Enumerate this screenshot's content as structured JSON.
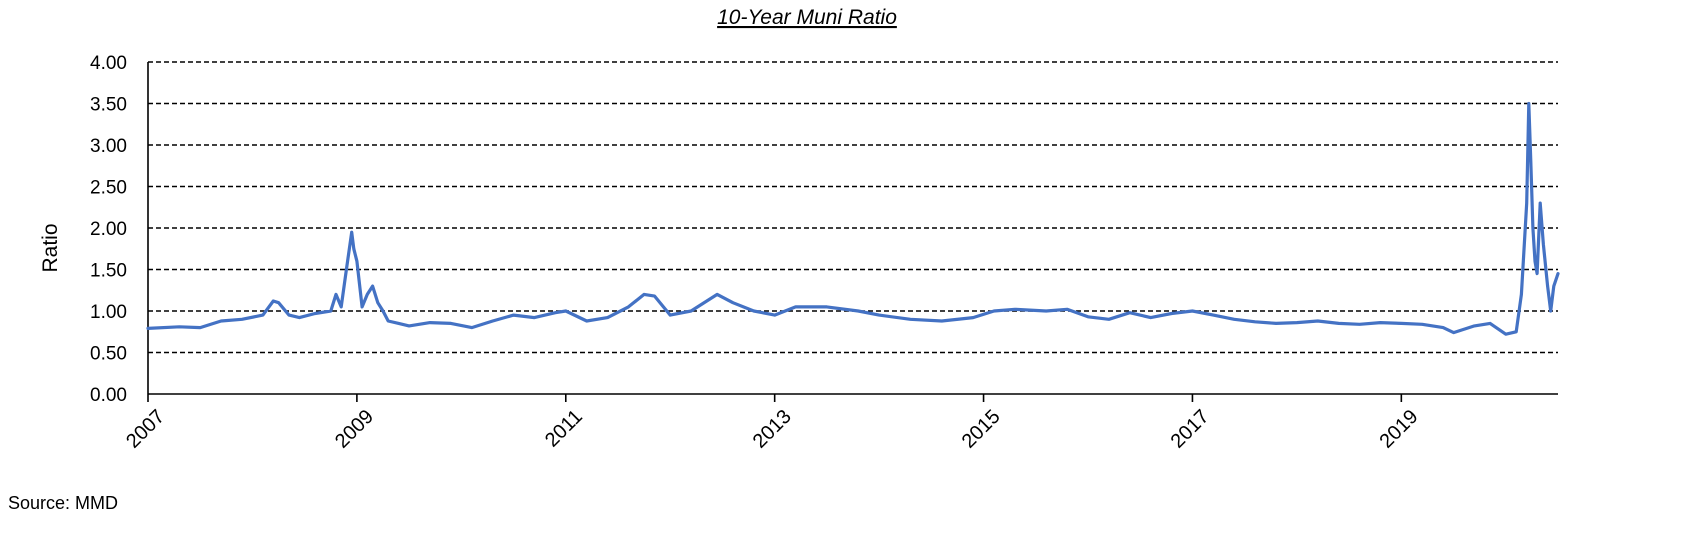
{
  "chart_data": {
    "type": "line",
    "title": "10-Year Muni Ratio",
    "ylabel": "Ratio",
    "xlabel": "",
    "xlim": [
      2007.0,
      2020.5
    ],
    "ylim": [
      0,
      4
    ],
    "grid": true,
    "legend": "none",
    "source": "Source: MMD",
    "y_ticks": [
      "0.00",
      "0.50",
      "1.00",
      "1.50",
      "2.00",
      "2.50",
      "3.00",
      "3.50",
      "4.00"
    ],
    "x_ticks": [
      "2007",
      "2009",
      "2011",
      "2013",
      "2015",
      "2017",
      "2019"
    ],
    "series": [
      {
        "color": "#4472C4",
        "x": [
          2007.0,
          2007.3,
          2007.5,
          2007.7,
          2007.9,
          2008.1,
          2008.2,
          2008.25,
          2008.35,
          2008.45,
          2008.6,
          2008.75,
          2008.8,
          2008.85,
          2008.9,
          2008.95,
          2008.97,
          2009.0,
          2009.05,
          2009.1,
          2009.15,
          2009.2,
          2009.25,
          2009.3,
          2009.4,
          2009.5,
          2009.7,
          2009.9,
          2010.1,
          2010.3,
          2010.5,
          2010.7,
          2010.9,
          2011.0,
          2011.2,
          2011.4,
          2011.6,
          2011.75,
          2011.85,
          2012.0,
          2012.2,
          2012.45,
          2012.6,
          2012.8,
          2013.0,
          2013.2,
          2013.5,
          2013.8,
          2014.0,
          2014.3,
          2014.6,
          2014.9,
          2015.1,
          2015.3,
          2015.6,
          2015.8,
          2016.0,
          2016.2,
          2016.4,
          2016.6,
          2016.8,
          2017.0,
          2017.2,
          2017.4,
          2017.6,
          2017.8,
          2018.0,
          2018.2,
          2018.4,
          2018.6,
          2018.8,
          2019.0,
          2019.2,
          2019.4,
          2019.5,
          2019.7,
          2019.85,
          2020.0,
          2020.1,
          2020.15,
          2020.2,
          2020.22,
          2020.24,
          2020.26,
          2020.28,
          2020.3,
          2020.33,
          2020.36,
          2020.4,
          2020.43,
          2020.46,
          2020.5
        ],
        "values": [
          0.79,
          0.81,
          0.8,
          0.88,
          0.9,
          0.95,
          1.12,
          1.1,
          0.95,
          0.92,
          0.97,
          1.0,
          1.2,
          1.05,
          1.5,
          1.95,
          1.75,
          1.6,
          1.05,
          1.2,
          1.3,
          1.1,
          1.0,
          0.88,
          0.85,
          0.82,
          0.86,
          0.85,
          0.8,
          0.88,
          0.95,
          0.92,
          0.98,
          1.0,
          0.88,
          0.92,
          1.05,
          1.2,
          1.18,
          0.95,
          1.0,
          1.2,
          1.1,
          1.0,
          0.95,
          1.05,
          1.05,
          1.0,
          0.95,
          0.9,
          0.88,
          0.92,
          1.0,
          1.02,
          1.0,
          1.02,
          0.93,
          0.9,
          0.98,
          0.92,
          0.97,
          1.0,
          0.95,
          0.9,
          0.87,
          0.85,
          0.86,
          0.88,
          0.85,
          0.84,
          0.86,
          0.85,
          0.84,
          0.8,
          0.74,
          0.82,
          0.85,
          0.72,
          0.75,
          1.2,
          2.3,
          3.5,
          2.8,
          2.0,
          1.6,
          1.45,
          2.3,
          1.8,
          1.3,
          1.0,
          1.3,
          1.45
        ]
      }
    ]
  }
}
